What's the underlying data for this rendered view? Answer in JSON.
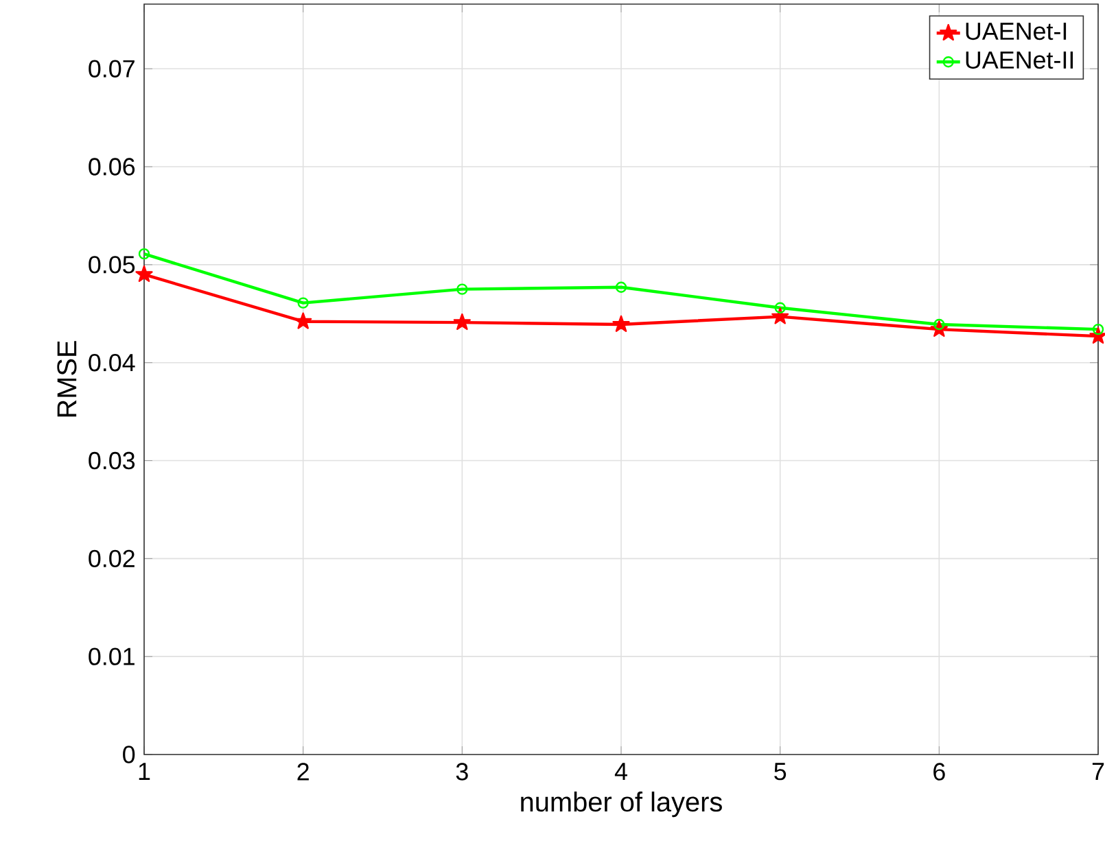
{
  "chart_data": {
    "type": "line",
    "xlabel": "number of layers",
    "ylabel": "RMSE",
    "x": [
      1,
      2,
      3,
      4,
      5,
      6,
      7
    ],
    "series": [
      {
        "name": "UAENet-I",
        "color": "#ff0000",
        "marker": "star",
        "values": [
          0.049,
          0.0442,
          0.0441,
          0.0439,
          0.0447,
          0.0434,
          0.0427
        ]
      },
      {
        "name": "UAENet-II",
        "color": "#00ff00",
        "marker": "circle",
        "values": [
          0.0511,
          0.0461,
          0.0475,
          0.0477,
          0.0456,
          0.0439,
          0.0434
        ]
      }
    ],
    "xlim": [
      1,
      7
    ],
    "ylim": [
      0,
      0.0766
    ],
    "xticks": [
      1,
      2,
      3,
      4,
      5,
      6,
      7
    ],
    "yticks": [
      0,
      0.01,
      0.02,
      0.03,
      0.04,
      0.05,
      0.06,
      0.07
    ],
    "grid": true,
    "legend": "top right",
    "line_style": "solid"
  }
}
